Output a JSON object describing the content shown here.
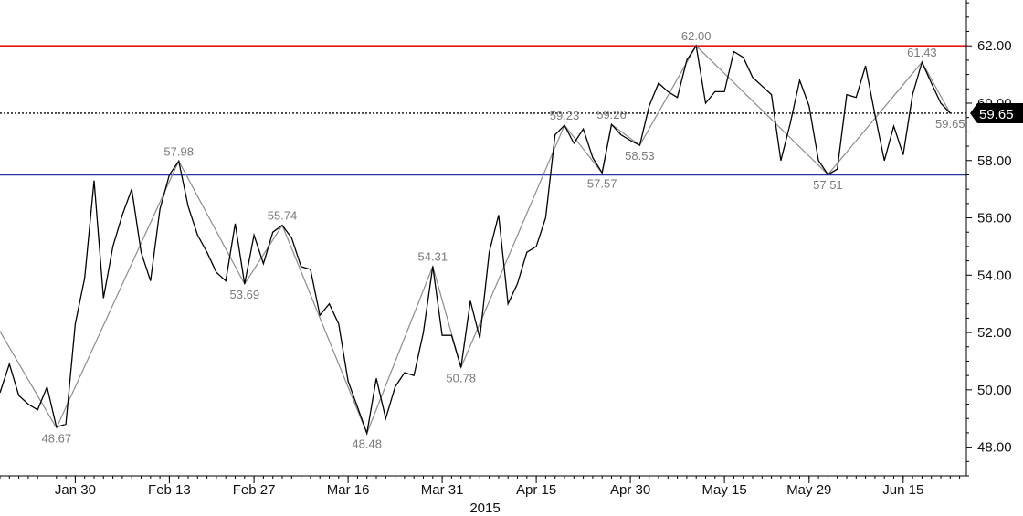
{
  "chart_data": {
    "type": "line",
    "xlabel": "2015",
    "ylim": [
      47.0,
      63.6
    ],
    "grid": false,
    "x_tick_labels": [
      "Jan 30",
      "Feb 13",
      "Feb 27",
      "Mar 16",
      "Mar 31",
      "Apr 15",
      "Apr 30",
      "May 15",
      "May 29",
      "Jun 15"
    ],
    "x_tick_positions": [
      8,
      18,
      27,
      37,
      47,
      57,
      67,
      77,
      86,
      96
    ],
    "y_ticks": [
      48,
      50,
      52,
      54,
      56,
      58,
      60,
      62
    ],
    "y_tick_labels": [
      "48.00",
      "50.00",
      "52.00",
      "54.00",
      "56.00",
      "58.00",
      "60.00",
      "62.00"
    ],
    "series": [
      {
        "values": [
          49.9,
          50.9,
          49.8,
          49.5,
          49.3,
          50.1,
          48.7,
          48.8,
          52.3,
          53.9,
          57.3,
          53.2,
          55.0,
          56.1,
          57.0,
          54.8,
          53.8,
          56.3,
          57.5,
          57.98,
          56.4,
          55.4,
          54.8,
          54.1,
          53.8,
          55.8,
          53.69,
          55.4,
          54.4,
          55.5,
          55.74,
          55.3,
          54.3,
          54.2,
          52.6,
          53.0,
          52.3,
          50.3,
          49.4,
          48.48,
          50.4,
          49.0,
          50.1,
          50.6,
          50.5,
          52.0,
          54.31,
          51.9,
          51.9,
          50.78,
          53.1,
          51.8,
          54.8,
          56.1,
          53.0,
          53.7,
          54.8,
          55.0,
          56.0,
          58.9,
          59.23,
          58.6,
          59.1,
          58.1,
          57.57,
          59.26,
          58.9,
          58.7,
          58.53,
          59.9,
          60.7,
          60.4,
          60.2,
          61.5,
          62.0,
          60.0,
          60.4,
          60.4,
          61.8,
          61.6,
          60.9,
          60.6,
          60.3,
          58.0,
          59.3,
          60.8,
          59.9,
          58.0,
          57.51,
          57.7,
          60.3,
          60.2,
          61.3,
          59.6,
          58.0,
          59.2,
          58.2,
          60.3,
          61.43,
          60.7,
          60.0,
          59.65
        ]
      },
      {
        "points": [
          [
            -1,
            52.6
          ],
          [
            6,
            48.67
          ],
          [
            19,
            57.98
          ],
          [
            26,
            53.69
          ],
          [
            30,
            55.74
          ],
          [
            39,
            48.48
          ],
          [
            46,
            54.31
          ],
          [
            49,
            50.78
          ],
          [
            60,
            59.23
          ],
          [
            64,
            57.57
          ],
          [
            65,
            59.26
          ],
          [
            68,
            58.53
          ],
          [
            74,
            62.0
          ],
          [
            88,
            57.51
          ],
          [
            98,
            61.43
          ],
          [
            101,
            59.65
          ]
        ]
      }
    ],
    "swing_labels": [
      {
        "x": 6,
        "y": 48.67,
        "text": "48.67",
        "pos": "below"
      },
      {
        "x": 19,
        "y": 57.98,
        "text": "57.98",
        "pos": "above"
      },
      {
        "x": 26,
        "y": 53.69,
        "text": "53.69",
        "pos": "below"
      },
      {
        "x": 30,
        "y": 55.74,
        "text": "55.74",
        "pos": "above"
      },
      {
        "x": 39,
        "y": 48.48,
        "text": "48.48",
        "pos": "below"
      },
      {
        "x": 46,
        "y": 54.31,
        "text": "54.31",
        "pos": "above"
      },
      {
        "x": 49,
        "y": 50.78,
        "text": "50.78",
        "pos": "below"
      },
      {
        "x": 60,
        "y": 59.23,
        "text": "59.23",
        "pos": "above"
      },
      {
        "x": 64,
        "y": 57.57,
        "text": "57.57",
        "pos": "below"
      },
      {
        "x": 65,
        "y": 59.26,
        "text": "59.26",
        "pos": "above"
      },
      {
        "x": 68,
        "y": 58.53,
        "text": "58.53",
        "pos": "below"
      },
      {
        "x": 74,
        "y": 62.0,
        "text": "62.00",
        "pos": "above"
      },
      {
        "x": 88,
        "y": 57.51,
        "text": "57.51",
        "pos": "below"
      },
      {
        "x": 98,
        "y": 61.43,
        "text": "61.43",
        "pos": "above"
      },
      {
        "x": 101,
        "y": 59.65,
        "text": "59.65",
        "pos": "below"
      }
    ],
    "horizontal_lines": [
      {
        "y": 62.0,
        "color": "#e8170f",
        "style": "solid"
      },
      {
        "y": 57.5,
        "color": "#2b33a6",
        "style": "solid"
      },
      {
        "y": 59.65,
        "color": "#000000",
        "style": "dotted"
      }
    ],
    "last_value": {
      "value": "59.65",
      "y": 59.65
    },
    "colors": {
      "price": "#000000",
      "swing": "#8c8c8c",
      "label": "#7a7a7a",
      "axis": "#000000"
    }
  }
}
